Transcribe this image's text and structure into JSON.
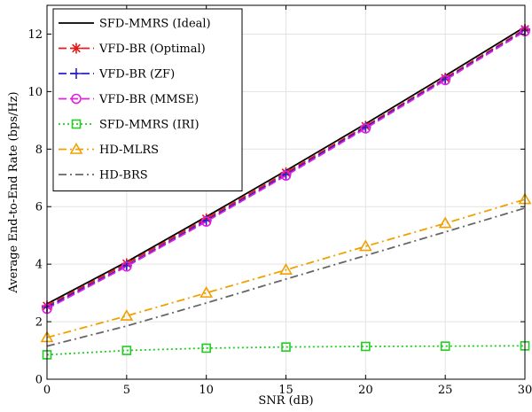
{
  "chart_data": {
    "type": "line",
    "xlabel": "SNR (dB)",
    "ylabel": "Average End-to-End Rate (bps/Hz)",
    "xlim": [
      0,
      30
    ],
    "ylim": [
      0,
      13
    ],
    "xticks": [
      0,
      5,
      10,
      15,
      20,
      25,
      30
    ],
    "yticks": [
      0,
      2,
      4,
      6,
      8,
      10,
      12
    ],
    "grid": true,
    "legend_position": "top-left",
    "x": [
      0,
      5,
      10,
      15,
      20,
      25,
      30
    ],
    "series": [
      {
        "name": "SFD-MMRS (Ideal)",
        "color": "#000000",
        "dash": "solid",
        "marker": "none",
        "values": [
          2.62,
          4.08,
          5.65,
          7.25,
          8.88,
          10.55,
          12.25
        ]
      },
      {
        "name": "VFD-BR (Optimal)",
        "color": "#e41a1c",
        "dash": "dashed",
        "marker": "asterisk",
        "values": [
          2.55,
          4.02,
          5.58,
          7.18,
          8.8,
          10.47,
          12.17
        ]
      },
      {
        "name": "VFD-BR (ZF)",
        "color": "#2222cc",
        "dash": "dashed",
        "marker": "plus",
        "values": [
          2.5,
          3.95,
          5.52,
          7.12,
          8.76,
          10.43,
          12.13
        ]
      },
      {
        "name": "VFD-BR (MMSE)",
        "color": "#e020e0",
        "dash": "dashed",
        "marker": "circle",
        "values": [
          2.45,
          3.92,
          5.48,
          7.08,
          8.72,
          10.4,
          12.1
        ]
      },
      {
        "name": "SFD-MMRS (IRI)",
        "color": "#22cc22",
        "dash": "dotted",
        "marker": "square",
        "values": [
          0.85,
          1.0,
          1.08,
          1.12,
          1.14,
          1.15,
          1.16
        ]
      },
      {
        "name": "HD-MLRS",
        "color": "#f0a000",
        "dash": "dashdot",
        "marker": "triangle",
        "values": [
          1.45,
          2.2,
          3.0,
          3.8,
          4.62,
          5.42,
          6.25
        ]
      },
      {
        "name": "HD-BRS",
        "color": "#666666",
        "dash": "dashdot",
        "marker": "none",
        "values": [
          1.15,
          1.85,
          2.65,
          3.48,
          4.3,
          5.12,
          5.95
        ]
      }
    ]
  }
}
